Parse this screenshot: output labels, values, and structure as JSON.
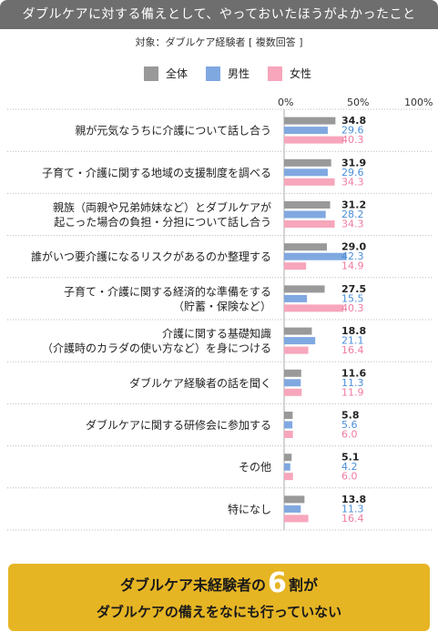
{
  "header": {
    "title": "ダブルケアに対する備えとして、やっておいたほうがよかったこと",
    "subtitle": "対象：ダブルケア経験者 [ 複数回答 ]"
  },
  "colors": {
    "all": "#999999",
    "male": "#80a8e0",
    "female": "#f7a6bc",
    "value_male": "#4a8fd8",
    "value_female": "#f07aa0"
  },
  "chart_data": {
    "type": "bar",
    "orientation": "horizontal",
    "xlim": [
      0,
      100
    ],
    "x_ticks": [
      "0%",
      "50%",
      "100%"
    ],
    "legend_position": "top",
    "categories": [
      "親が元気なうちに介護について話し合う",
      "子育て・介護に関する地域の支援制度を調べる",
      "親族（両親や兄弟姉妹など）とダブルケアが\n起こった場合の負担・分担について話し合う",
      "誰がいつ要介護になるリスクがあるのか整理する",
      "子育て・介護に関する経済的な準備をする\n（貯蓄・保険など）",
      "介護に関する基礎知識\n（介護時のカラダの使い方など）を身につける",
      "ダブルケア経験者の話を聞く",
      "ダブルケアに関する研修会に参加する",
      "その他",
      "特になし"
    ],
    "series": [
      {
        "name": "全体",
        "values": [
          34.8,
          31.9,
          31.2,
          29.0,
          27.5,
          18.8,
          11.6,
          5.8,
          5.1,
          13.8
        ]
      },
      {
        "name": "男性",
        "values": [
          29.6,
          29.6,
          28.2,
          42.3,
          15.5,
          21.1,
          11.3,
          5.6,
          4.2,
          11.3
        ]
      },
      {
        "name": "女性",
        "values": [
          40.3,
          34.3,
          34.3,
          14.9,
          40.3,
          16.4,
          11.9,
          6.0,
          6.0,
          16.4
        ]
      }
    ]
  },
  "callout": {
    "line1_pre": "ダブルケア未経験者の",
    "line1_big": "6",
    "line1_unit": "割",
    "line1_post": "が",
    "line2": "ダブルケアの備えをなにも行っていない"
  }
}
